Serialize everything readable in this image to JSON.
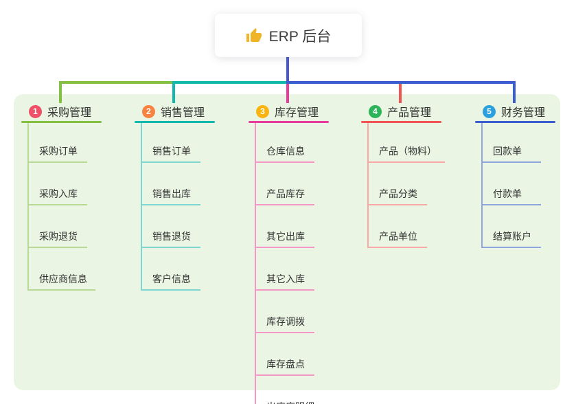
{
  "root": {
    "title": "ERP 后台",
    "icon": "thumbs-up-icon",
    "icon_color": "#f0b429",
    "connector_color": "#4a58d0"
  },
  "colors": {
    "panel_bg": "#eaf6e3",
    "canvas_bg": "#ffffff",
    "text": "#333333"
  },
  "branches": [
    {
      "index": "1",
      "title": "采购管理",
      "badge_color": "#ef5168",
      "line_color": "#84c043",
      "light_color": "#b9da96",
      "items": [
        "采购订单",
        "采购入库",
        "采购退货",
        "供应商信息"
      ]
    },
    {
      "index": "2",
      "title": "销售管理",
      "badge_color": "#f8823f",
      "line_color": "#12b7ae",
      "light_color": "#7ed6d0",
      "items": [
        "销售订单",
        "销售出库",
        "销售退货",
        "客户信息"
      ]
    },
    {
      "index": "3",
      "title": "库存管理",
      "badge_color": "#f9b412",
      "line_color": "#e73c9e",
      "light_color": "#f498c8",
      "items": [
        "仓库信息",
        "产品库存",
        "其它出库",
        "其它入库",
        "库存调拨",
        "库存盘点",
        "出库库明细"
      ]
    },
    {
      "index": "4",
      "title": "产品管理",
      "badge_color": "#2db45a",
      "line_color": "#f25454",
      "light_color": "#f9a8a8",
      "items": [
        "产品（物料）",
        "产品分类",
        "产品单位"
      ]
    },
    {
      "index": "5",
      "title": "财务管理",
      "badge_color": "#2ba0dc",
      "line_color": "#3a5ecf",
      "light_color": "#8fa6dc",
      "items": [
        "回款单",
        "付款单",
        "结算账户"
      ]
    }
  ]
}
